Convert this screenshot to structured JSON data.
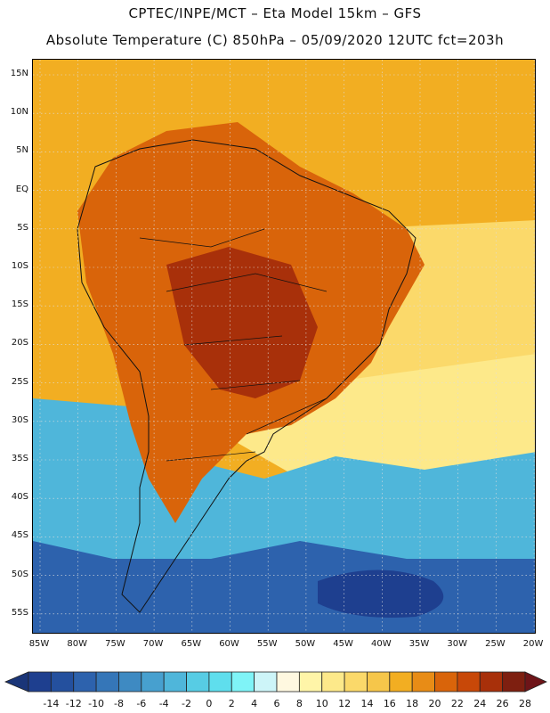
{
  "header": {
    "line1": "CPTEC/INPE/MCT –  Eta Model 15km – GFS",
    "line2": "Absolute Temperature (C) 850hPa – 05/09/2020 12UTC fct=203h"
  },
  "lat_labels": [
    "15N",
    "10N",
    "5N",
    "EQ",
    "5S",
    "10S",
    "15S",
    "20S",
    "25S",
    "30S",
    "35S",
    "40S",
    "45S",
    "50S",
    "55S"
  ],
  "lon_labels": [
    "85W",
    "80W",
    "75W",
    "70W",
    "65W",
    "60W",
    "55W",
    "50W",
    "45W",
    "40W",
    "35W",
    "30W",
    "25W",
    "20W"
  ],
  "colorbar": {
    "labels": [
      "-14",
      "-12",
      "-10",
      "-8",
      "-6",
      "-4",
      "-2",
      "0",
      "2",
      "4",
      "6",
      "8",
      "10",
      "12",
      "14",
      "16",
      "18",
      "20",
      "22",
      "24",
      "26",
      "28"
    ],
    "colors": [
      "#1e3f8f",
      "#24509e",
      "#2d62ad",
      "#3576b8",
      "#3e8ac2",
      "#47a0cf",
      "#4fb6da",
      "#57cce4",
      "#5fdeed",
      "#7ff4f7",
      "#cdf5f8",
      "#fff8e0",
      "#fff5a8",
      "#fde98a",
      "#fbd96a",
      "#f6c64a",
      "#f2ae22",
      "#e88c16",
      "#d9640a",
      "#c84808",
      "#a8300a",
      "#7e1f10"
    ],
    "under_color": "#1a3578",
    "over_color": "#6e1418"
  },
  "regions": [
    {
      "name": "north-ocean",
      "color": "#f2ae22"
    },
    {
      "name": "tropical-land",
      "color": "#d9640a"
    },
    {
      "name": "hot-core",
      "color": "#a8300a"
    },
    {
      "name": "subtropical",
      "color": "#fbd96a"
    },
    {
      "name": "south-ocean",
      "color": "#4fb6da"
    },
    {
      "name": "deep-south",
      "color": "#2d62ad"
    }
  ]
}
